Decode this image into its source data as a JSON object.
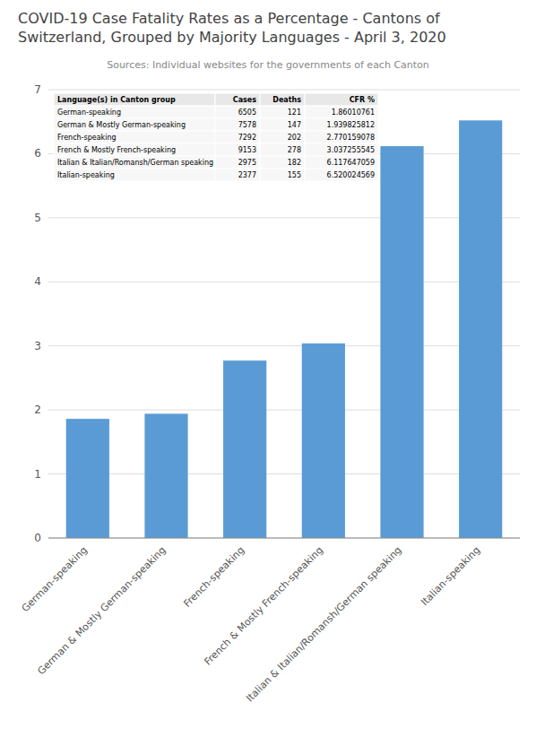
{
  "chart_data": {
    "type": "bar",
    "title": "COVID-19 Case Fatality Rates as a Percentage - Cantons of\nSwitzerland, Grouped by Majority Languages - April 3, 2020",
    "subtitle": "Sources: Individual websites for the governments of each Canton",
    "categories": [
      "German-speaking",
      "German & Mostly German-speaking",
      "French-speaking",
      "French & Mostly French-speaking",
      "Italian & Italian/Romansh/German speaking",
      "Italian-speaking"
    ],
    "values": [
      1.86010761,
      1.939825812,
      2.770159078,
      3.037255545,
      6.117647059,
      6.520024569
    ],
    "color": "#5B9BD5",
    "ylim": [
      0,
      7
    ],
    "yticks": [
      0,
      1,
      2,
      3,
      4,
      5,
      6,
      7
    ],
    "grid": true,
    "table": {
      "headers": [
        "Language(s) in Canton group",
        "Cases",
        "Deaths",
        "CFR %"
      ],
      "rows": [
        [
          "German-speaking",
          "6505",
          "121",
          "1.86010761"
        ],
        [
          "German & Mostly German-speaking",
          "7578",
          "147",
          "1.939825812"
        ],
        [
          "French-speaking",
          "7292",
          "202",
          "2.770159078"
        ],
        [
          "French & Mostly French-speaking",
          "9153",
          "278",
          "3.037255545"
        ],
        [
          "Italian & Italian/Romansh/German speaking",
          "2975",
          "182",
          "6.117647059"
        ],
        [
          "Italian-speaking",
          "2377",
          "155",
          "6.520024569"
        ]
      ]
    }
  }
}
